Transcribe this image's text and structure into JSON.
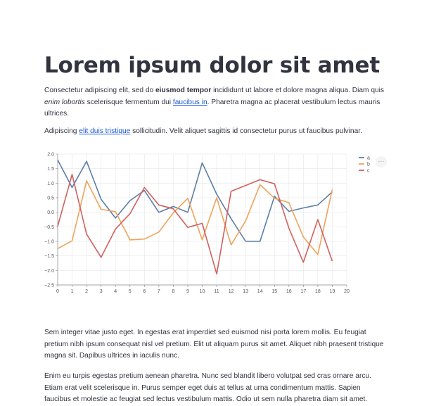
{
  "header": {
    "title": "Lorem ipsum dolor sit amet"
  },
  "paragraph1": {
    "part1": "Consectetur adipiscing elit, sed do ",
    "bold": "eiusmod tempor",
    "part2": " incididunt ut labore et dolore magna aliqua. Diam quis ",
    "italic": "enim lobortis",
    "part3": " scelerisque fermentum dui ",
    "link": "faucibus in",
    "part4": ". Pharetra magna ac placerat vestibulum lectus mauris ultrices."
  },
  "paragraph2": {
    "part1": "Adipiscing ",
    "link": "elit duis tristique",
    "part2": " sollicitudin. Velit aliquet sagittis id consectetur purus ut faucibus pulvinar."
  },
  "chart_data": {
    "type": "line",
    "x": [
      0,
      1,
      2,
      3,
      4,
      5,
      6,
      7,
      8,
      9,
      10,
      11,
      12,
      13,
      14,
      15,
      16,
      17,
      18,
      19
    ],
    "xlim": [
      0,
      20
    ],
    "ylim": [
      -2.5,
      2.0
    ],
    "xticks": [
      0,
      1,
      2,
      3,
      4,
      5,
      6,
      7,
      8,
      9,
      10,
      11,
      12,
      13,
      14,
      15,
      16,
      17,
      18,
      19,
      20
    ],
    "yticks": [
      "2.0",
      "1.5",
      "1.0",
      "0.5",
      "0.0",
      "−0.5",
      "−1.0",
      "−1.5",
      "−2.0",
      "−2.5"
    ],
    "ytick_values": [
      2.0,
      1.5,
      1.0,
      0.5,
      0.0,
      -0.5,
      -1.0,
      -1.5,
      -2.0,
      -2.5
    ],
    "grid": true,
    "legend": "top-right",
    "series": [
      {
        "name": "a",
        "color": "#5b7fa8",
        "values": [
          1.8,
          0.85,
          1.75,
          0.45,
          -0.2,
          0.4,
          0.75,
          0.0,
          0.2,
          0.0,
          1.7,
          0.62,
          -0.22,
          -1.0,
          -1.0,
          0.55,
          0.03,
          0.15,
          0.25,
          0.7
        ]
      },
      {
        "name": "b",
        "color": "#eea359",
        "values": [
          -1.25,
          -0.98,
          1.08,
          0.1,
          0.02,
          -0.95,
          -0.92,
          -0.68,
          -0.02,
          0.48,
          -0.95,
          0.5,
          -1.12,
          -0.3,
          0.95,
          0.48,
          0.33,
          -0.85,
          -1.45,
          0.78
        ]
      },
      {
        "name": "c",
        "color": "#d1605e",
        "values": [
          -0.48,
          1.3,
          -0.75,
          -1.55,
          -0.58,
          -0.05,
          0.85,
          0.25,
          0.12,
          -0.52,
          -0.38,
          -2.12,
          0.72,
          0.92,
          1.12,
          0.98,
          -0.55,
          -1.72,
          -0.25,
          -1.68
        ]
      }
    ]
  },
  "chart_menu": {
    "icon": "more-horizontal-icon",
    "label": "···"
  },
  "paragraph3": {
    "text": "Sem integer vitae justo eget. In egestas erat imperdiet sed euismod nisi porta lorem mollis. Eu feugiat pretium nibh ipsum consequat nisl vel pretium. Elit ut aliquam purus sit amet. Aliquet nibh praesent tristique magna sit. Dapibus ultrices in iaculis nunc."
  },
  "paragraph4": {
    "text": "Enim eu turpis egestas pretium aenean pharetra. Nunc sed blandit libero volutpat sed cras ornare arcu. Etiam erat velit scelerisque in. Purus semper eget duis at tellus at urna condimentum mattis. Sapien faucibus et molestie ac feugiat sed lectus vestibulum mattis. Odio ut sem nulla pharetra diam sit amet."
  }
}
